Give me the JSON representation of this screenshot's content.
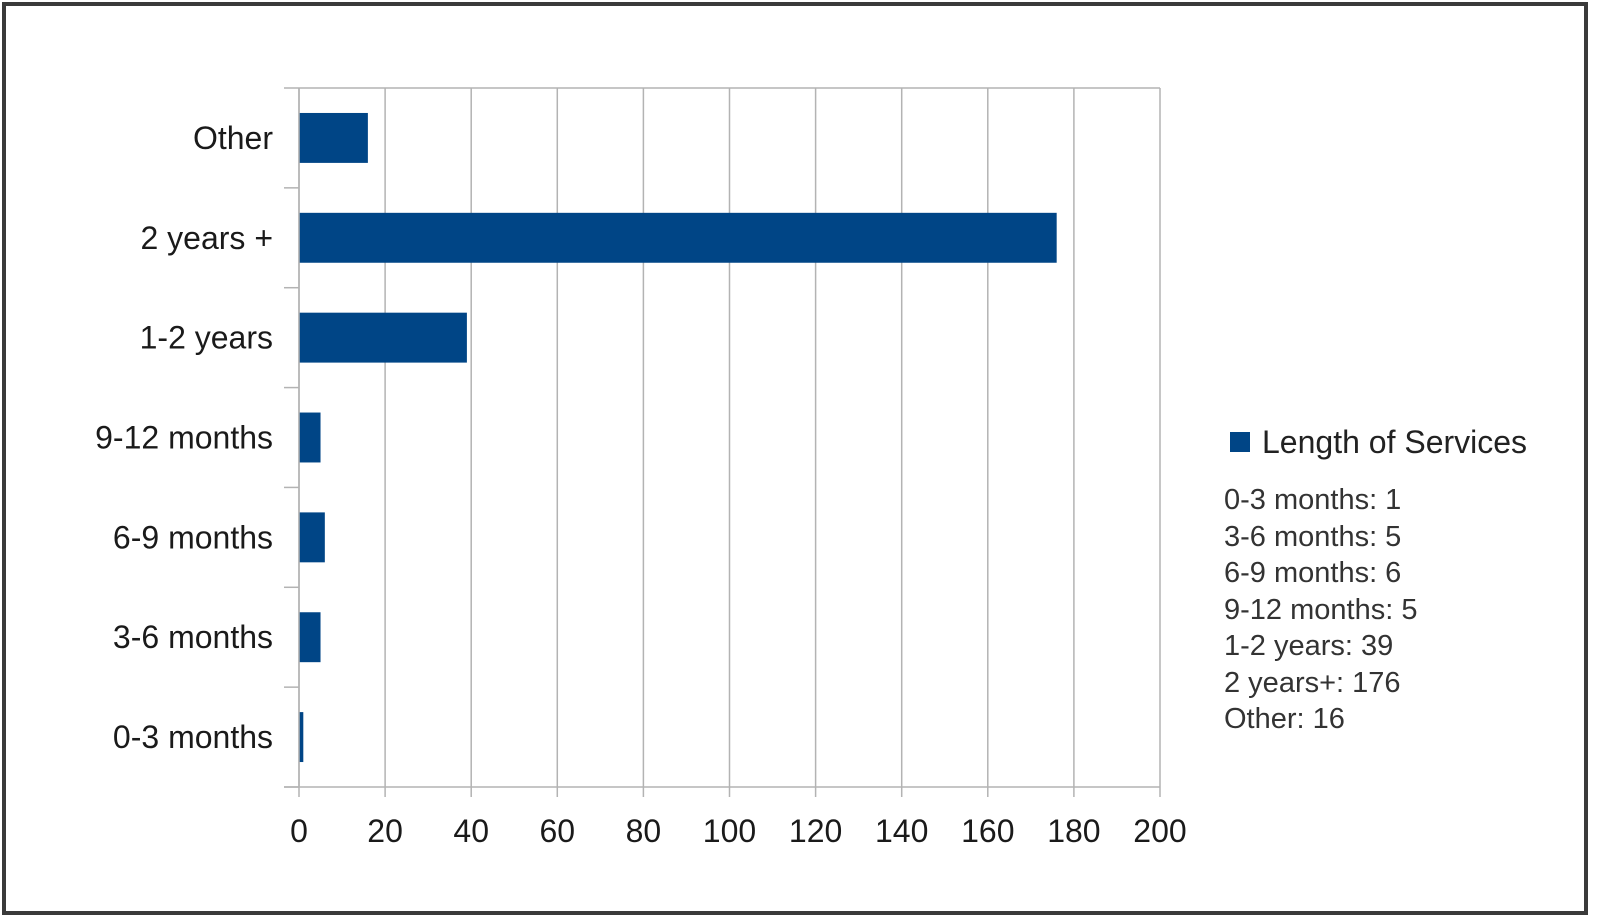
{
  "colors": {
    "bar": "#004586",
    "grid": "#b3b3b3",
    "axis": "#b3b3b3",
    "frame": "#3a3a3a"
  },
  "chart_data": {
    "type": "bar",
    "orientation": "horizontal",
    "categories": [
      "0-3 months",
      "3-6 months",
      "6-9 months",
      "9-12 months",
      "1-2 years",
      "2 years +",
      "Other"
    ],
    "series": [
      {
        "name": "Length of Services",
        "values": [
          1,
          5,
          6,
          5,
          39,
          176,
          16
        ]
      }
    ],
    "xlim": [
      0,
      200
    ],
    "xticks": [
      "0",
      "20",
      "40",
      "60",
      "80",
      "100",
      "120",
      "140",
      "160",
      "180",
      "200"
    ],
    "grid": "vertical",
    "legend_placement": "right",
    "legend_title": "Length of Services",
    "legend_lines": [
      "0-3 months: 1",
      "3-6 months: 5",
      "6-9 months: 6",
      "9-12 months: 5",
      "1-2 years: 39",
      "2 years+: 176",
      "Other: 16"
    ]
  }
}
